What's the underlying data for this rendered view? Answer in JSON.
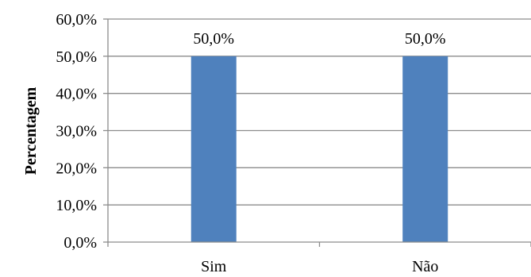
{
  "chart_data": {
    "type": "bar",
    "title": "",
    "xlabel": "",
    "ylabel": "Percentagem",
    "categories": [
      "Sim",
      "Não"
    ],
    "values": [
      50.0,
      50.0
    ],
    "data_labels": [
      "50,0%",
      "50,0%"
    ],
    "ylim": [
      0,
      60
    ],
    "yticks": [
      0,
      10,
      20,
      30,
      40,
      50,
      60
    ],
    "ytick_labels": [
      "0,0%",
      "10,0%",
      "20,0%",
      "30,0%",
      "40,0%",
      "50,0%",
      "60,0%"
    ],
    "grid": true,
    "legend": "none",
    "colors": {
      "bar": "#4F81BD",
      "grid": "#8C8C8C",
      "axis": "#8C8C8C"
    }
  }
}
